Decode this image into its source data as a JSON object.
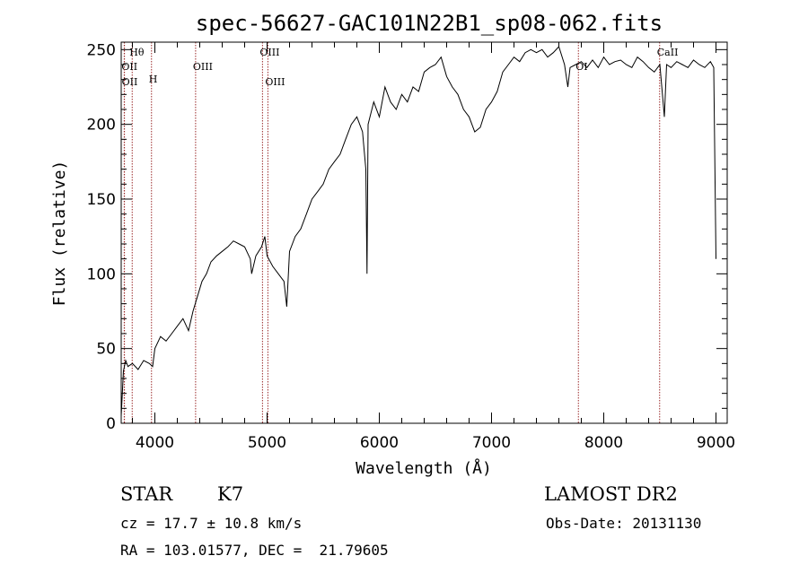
{
  "chart_data": {
    "type": "line",
    "title": "spec-56627-GAC101N22B1_sp08-062.fits",
    "xlabel": "Wavelength (Å)",
    "ylabel": "Flux (relative)",
    "xlim": [
      3700,
      9100
    ],
    "ylim": [
      0,
      255
    ],
    "xticks": [
      4000,
      5000,
      6000,
      7000,
      8000,
      9000
    ],
    "yticks": [
      0,
      50,
      100,
      150,
      200,
      250
    ],
    "grid": false,
    "series": [
      {
        "x": [
          3700,
          3720,
          3740,
          3760,
          3800,
          3850,
          3900,
          3950,
          3980,
          4000,
          4050,
          4100,
          4150,
          4200,
          4250,
          4300,
          4340,
          4380,
          4420,
          4460,
          4500,
          4550,
          4600,
          4650,
          4700,
          4750,
          4800,
          4850,
          4862,
          4900,
          4950,
          4980,
          5000,
          5050,
          5100,
          5150,
          5175,
          5200,
          5250,
          5300,
          5350,
          5400,
          5450,
          5500,
          5550,
          5600,
          5650,
          5700,
          5750,
          5800,
          5850,
          5880,
          5890,
          5900,
          5950,
          6000,
          6050,
          6100,
          6150,
          6200,
          6250,
          6300,
          6350,
          6400,
          6450,
          6500,
          6550,
          6600,
          6650,
          6700,
          6750,
          6800,
          6850,
          6900,
          6950,
          7000,
          7050,
          7100,
          7150,
          7200,
          7250,
          7300,
          7350,
          7400,
          7450,
          7500,
          7550,
          7600,
          7650,
          7680,
          7700,
          7750,
          7800,
          7850,
          7900,
          7950,
          8000,
          8050,
          8100,
          8150,
          8200,
          8250,
          8300,
          8350,
          8400,
          8450,
          8500,
          8540,
          8560,
          8600,
          8650,
          8700,
          8750,
          8800,
          8850,
          8900,
          8950,
          8980,
          9000
        ],
        "y": [
          5,
          35,
          42,
          38,
          40,
          36,
          42,
          40,
          38,
          50,
          58,
          55,
          60,
          65,
          70,
          62,
          75,
          85,
          95,
          100,
          108,
          112,
          115,
          118,
          122,
          120,
          118,
          110,
          100,
          112,
          118,
          125,
          112,
          105,
          100,
          95,
          78,
          115,
          125,
          130,
          140,
          150,
          155,
          160,
          170,
          175,
          180,
          190,
          200,
          205,
          195,
          170,
          100,
          200,
          215,
          205,
          225,
          215,
          210,
          220,
          215,
          225,
          222,
          235,
          238,
          240,
          245,
          232,
          225,
          220,
          210,
          205,
          195,
          198,
          210,
          215,
          222,
          235,
          240,
          245,
          242,
          248,
          250,
          248,
          250,
          245,
          248,
          252,
          240,
          225,
          238,
          240,
          242,
          238,
          243,
          238,
          245,
          240,
          242,
          243,
          240,
          238,
          245,
          242,
          238,
          235,
          240,
          205,
          240,
          238,
          242,
          240,
          238,
          243,
          240,
          238,
          242,
          238,
          110
        ]
      }
    ],
    "spectral_lines": [
      {
        "label": "Hθ",
        "x": 3798
      },
      {
        "label": "OII",
        "x": 3727
      },
      {
        "label": "OII",
        "x": 3729
      },
      {
        "label": "H",
        "x": 3970
      },
      {
        "label": "OIII",
        "x": 4363
      },
      {
        "label": "OIII",
        "x": 4959
      },
      {
        "label": "OIII",
        "x": 5007
      },
      {
        "label": "OI",
        "x": 7774
      },
      {
        "label": "CaII",
        "x": 8498
      }
    ]
  },
  "info": {
    "class": "STAR",
    "subclass": "K7",
    "survey": "LAMOST DR2",
    "cz": "cz = 17.7 ± 10.8 km/s",
    "obs_date": "Obs-Date: 20131130",
    "coords": "RA = 103.01577, DEC =  21.79605"
  }
}
